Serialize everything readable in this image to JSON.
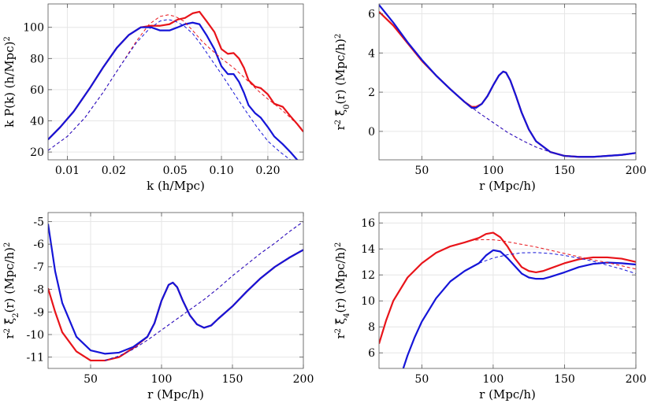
{
  "chart_data": [
    {
      "type": "line",
      "xlabel": "k (h/Mpc)",
      "ylabel": "k P(k) (h/Mpc)^2",
      "xscale": "log",
      "xlim": [
        0.0075,
        0.34
      ],
      "ylim": [
        15,
        115
      ],
      "xticks": [
        0.01,
        0.02,
        0.05,
        0.1,
        0.2
      ],
      "xtick_labels": [
        "0.01",
        "0.02",
        "0.05",
        "0.10",
        "0.20"
      ],
      "yticks": [
        20,
        40,
        60,
        80,
        100
      ],
      "ytick_labels": [
        "20",
        "40",
        "60",
        "80",
        "100"
      ],
      "grid": true,
      "series": [
        {
          "color": "#e8141a",
          "style": "solid",
          "x": [
            0.0075,
            0.009,
            0.011,
            0.014,
            0.017,
            0.021,
            0.025,
            0.03,
            0.035,
            0.04,
            0.046,
            0.052,
            0.058,
            0.065,
            0.072,
            0.08,
            0.09,
            0.1,
            0.11,
            0.12,
            0.13,
            0.14,
            0.15,
            0.165,
            0.18,
            0.2,
            0.22,
            0.25,
            0.28,
            0.31,
            0.34
          ],
          "y": [
            28,
            36,
            46,
            61,
            74,
            87,
            95,
            100,
            101,
            101,
            102,
            105,
            106,
            109,
            110,
            104,
            97,
            86,
            83,
            83.5,
            80,
            74,
            66,
            62,
            61,
            57,
            51,
            49,
            43,
            38,
            33
          ]
        },
        {
          "color": "#1515d8",
          "style": "solid",
          "x": [
            0.0075,
            0.009,
            0.011,
            0.014,
            0.017,
            0.021,
            0.025,
            0.03,
            0.035,
            0.04,
            0.046,
            0.052,
            0.058,
            0.065,
            0.072,
            0.08,
            0.09,
            0.1,
            0.11,
            0.12,
            0.13,
            0.14,
            0.15,
            0.165,
            0.18,
            0.2,
            0.22,
            0.25,
            0.28,
            0.31,
            0.33
          ],
          "y": [
            28,
            36,
            46,
            61,
            74,
            87,
            95,
            100,
            100,
            98,
            98,
            100,
            102,
            103,
            102,
            95,
            86,
            75,
            70,
            70,
            65,
            58,
            50,
            45,
            42,
            36,
            30,
            25,
            20,
            15,
            12
          ]
        },
        {
          "color": "#e8141a",
          "style": "dashed",
          "x": [
            0.0075,
            0.01,
            0.013,
            0.017,
            0.022,
            0.028,
            0.034,
            0.04,
            0.045,
            0.05,
            0.057,
            0.065,
            0.075,
            0.085,
            0.1,
            0.12,
            0.14,
            0.17,
            0.2,
            0.24,
            0.28,
            0.34
          ],
          "y": [
            21,
            30,
            42,
            58,
            75,
            91,
            102,
            107,
            108,
            107,
            104,
            98,
            91,
            86,
            80,
            74,
            68,
            60,
            54,
            48,
            42,
            34
          ]
        },
        {
          "color": "#1515d8",
          "style": "dashed",
          "x": [
            0.0075,
            0.01,
            0.013,
            0.017,
            0.022,
            0.028,
            0.034,
            0.04,
            0.045,
            0.05,
            0.057,
            0.065,
            0.075,
            0.085,
            0.1,
            0.12,
            0.14,
            0.17,
            0.2,
            0.24,
            0.28,
            0.34
          ],
          "y": [
            21,
            30,
            42,
            58,
            75,
            90,
            99,
            104,
            105,
            104,
            101,
            96,
            88,
            80,
            70,
            58,
            48,
            36,
            27,
            20,
            15,
            10
          ]
        }
      ]
    },
    {
      "type": "line",
      "xlabel": "r (Mpc/h)",
      "ylabel": "r^2 ξ̃_0(r) (Mpc/h)^2",
      "xlim": [
        20,
        200
      ],
      "ylim": [
        -1.45,
        6.5
      ],
      "xticks": [
        50,
        100,
        150,
        200
      ],
      "xtick_labels": [
        "50",
        "100",
        "150",
        "200"
      ],
      "yticks": [
        0,
        2,
        4,
        6
      ],
      "ytick_labels": [
        "0",
        "2",
        "4",
        "6"
      ],
      "grid": true,
      "series": [
        {
          "color": "#e8141a",
          "style": "solid",
          "x": [
            20,
            25,
            30,
            40,
            50,
            60,
            70,
            80,
            85,
            88,
            92,
            96,
            100,
            104,
            107,
            109,
            112,
            116,
            120,
            125,
            130,
            140,
            150,
            160,
            170,
            180,
            190,
            200
          ],
          "y": [
            6.1,
            5.75,
            5.4,
            4.5,
            3.6,
            2.85,
            2.15,
            1.5,
            1.25,
            1.25,
            1.4,
            1.8,
            2.35,
            2.85,
            3.05,
            3.0,
            2.6,
            1.8,
            0.95,
            0.1,
            -0.5,
            -1.05,
            -1.25,
            -1.3,
            -1.3,
            -1.25,
            -1.2,
            -1.1
          ]
        },
        {
          "color": "#1515d8",
          "style": "solid",
          "x": [
            20,
            25,
            30,
            40,
            50,
            60,
            70,
            80,
            85,
            88,
            92,
            96,
            100,
            104,
            107,
            109,
            112,
            116,
            120,
            125,
            130,
            140,
            150,
            160,
            170,
            180,
            190,
            200
          ],
          "y": [
            6.45,
            6.0,
            5.55,
            4.55,
            3.65,
            2.85,
            2.15,
            1.5,
            1.2,
            1.2,
            1.4,
            1.8,
            2.35,
            2.85,
            3.05,
            3.0,
            2.6,
            1.8,
            0.95,
            0.1,
            -0.5,
            -1.05,
            -1.25,
            -1.3,
            -1.3,
            -1.25,
            -1.2,
            -1.1
          ]
        },
        {
          "color": "#e8141a",
          "style": "dashed",
          "x": [
            80,
            90,
            100,
            110,
            120,
            130,
            140,
            150,
            160
          ],
          "y": [
            1.5,
            0.95,
            0.45,
            -0.05,
            -0.45,
            -0.8,
            -1.05,
            -1.25,
            -1.3
          ]
        },
        {
          "color": "#1515d8",
          "style": "dashed",
          "x": [
            80,
            90,
            100,
            110,
            120,
            130,
            140,
            150,
            160
          ],
          "y": [
            1.5,
            0.95,
            0.45,
            -0.05,
            -0.45,
            -0.8,
            -1.05,
            -1.25,
            -1.3
          ]
        }
      ]
    },
    {
      "type": "line",
      "xlabel": "r (Mpc/h)",
      "ylabel": "r^2 ξ̃_2(r) (Mpc/h)^2",
      "xlim": [
        20,
        200
      ],
      "ylim": [
        -11.5,
        -4.6
      ],
      "xticks": [
        50,
        100,
        150,
        200
      ],
      "xtick_labels": [
        "50",
        "100",
        "150",
        "200"
      ],
      "yticks": [
        -11,
        -10,
        -9,
        -8,
        -7,
        -6,
        -5
      ],
      "ytick_labels": [
        "-11",
        "-10",
        "-9",
        "-8",
        "-7",
        "-6",
        "-5"
      ],
      "grid": true,
      "series": [
        {
          "color": "#e8141a",
          "style": "solid",
          "x": [
            20,
            25,
            30,
            40,
            50,
            60,
            70,
            80,
            90,
            95,
            100,
            105,
            108,
            111,
            115,
            120,
            125,
            130,
            135,
            140,
            150,
            160,
            170,
            180,
            190,
            200
          ],
          "y": [
            -7.95,
            -9.0,
            -9.9,
            -10.75,
            -11.15,
            -11.15,
            -11.0,
            -10.6,
            -10.1,
            -9.5,
            -8.5,
            -7.8,
            -7.7,
            -7.9,
            -8.5,
            -9.15,
            -9.55,
            -9.7,
            -9.6,
            -9.3,
            -8.75,
            -8.1,
            -7.5,
            -7.0,
            -6.6,
            -6.25
          ]
        },
        {
          "color": "#1515d8",
          "style": "solid",
          "x": [
            20,
            25,
            30,
            40,
            50,
            60,
            70,
            80,
            90,
            95,
            100,
            105,
            108,
            111,
            115,
            120,
            125,
            130,
            135,
            140,
            150,
            160,
            170,
            180,
            190,
            200
          ],
          "y": [
            -5.1,
            -7.2,
            -8.6,
            -10.1,
            -10.7,
            -10.85,
            -10.8,
            -10.55,
            -10.1,
            -9.5,
            -8.5,
            -7.8,
            -7.7,
            -7.9,
            -8.5,
            -9.15,
            -9.55,
            -9.7,
            -9.6,
            -9.3,
            -8.75,
            -8.1,
            -7.5,
            -7.0,
            -6.6,
            -6.25
          ]
        },
        {
          "color": "#e8141a",
          "style": "dashed",
          "x": [
            60,
            70,
            80,
            90,
            100,
            110,
            120,
            130,
            140,
            150,
            160,
            170,
            180,
            190,
            200
          ],
          "y": [
            -11.15,
            -10.95,
            -10.65,
            -10.25,
            -9.8,
            -9.35,
            -8.9,
            -8.45,
            -7.95,
            -7.4,
            -6.9,
            -6.4,
            -5.95,
            -5.45,
            -5.0
          ]
        },
        {
          "color": "#1515d8",
          "style": "dashed",
          "x": [
            60,
            70,
            80,
            90,
            100,
            110,
            120,
            130,
            140,
            150,
            160,
            170,
            180,
            190,
            200
          ],
          "y": [
            -11.15,
            -10.95,
            -10.65,
            -10.25,
            -9.8,
            -9.35,
            -8.9,
            -8.45,
            -7.95,
            -7.4,
            -6.9,
            -6.4,
            -5.95,
            -5.45,
            -5.0
          ]
        }
      ]
    },
    {
      "type": "line",
      "xlabel": "r (Mpc/h)",
      "ylabel": "r^2 ξ̃_4(r) (Mpc/h)^2",
      "xlim": [
        20,
        200
      ],
      "ylim": [
        4.8,
        16.8
      ],
      "xticks": [
        50,
        100,
        150,
        200
      ],
      "xtick_labels": [
        "50",
        "100",
        "150",
        "200"
      ],
      "yticks": [
        6,
        8,
        10,
        12,
        14,
        16
      ],
      "ytick_labels": [
        "6",
        "8",
        "10",
        "12",
        "14",
        "16"
      ],
      "grid": true,
      "series": [
        {
          "color": "#e8141a",
          "style": "solid",
          "x": [
            20,
            25,
            30,
            40,
            50,
            60,
            70,
            80,
            90,
            95,
            100,
            105,
            110,
            115,
            120,
            125,
            130,
            135,
            140,
            150,
            160,
            170,
            180,
            190,
            200
          ],
          "y": [
            6.7,
            8.5,
            10.0,
            11.8,
            12.9,
            13.7,
            14.2,
            14.5,
            14.85,
            15.15,
            15.25,
            14.9,
            14.2,
            13.3,
            12.6,
            12.3,
            12.2,
            12.3,
            12.5,
            12.9,
            13.2,
            13.35,
            13.35,
            13.25,
            13.0
          ]
        },
        {
          "color": "#1515d8",
          "style": "solid",
          "x": [
            37,
            40,
            45,
            50,
            60,
            70,
            80,
            90,
            95,
            100,
            105,
            110,
            115,
            120,
            125,
            130,
            135,
            140,
            150,
            160,
            170,
            180,
            190,
            200
          ],
          "y": [
            4.8,
            5.8,
            7.2,
            8.4,
            10.2,
            11.5,
            12.3,
            12.9,
            13.5,
            13.9,
            13.8,
            13.3,
            12.7,
            12.1,
            11.8,
            11.7,
            11.7,
            11.85,
            12.2,
            12.6,
            12.85,
            12.95,
            12.9,
            12.8
          ]
        },
        {
          "color": "#e8141a",
          "style": "dashed",
          "x": [
            80,
            85,
            90,
            95,
            100,
            105,
            110,
            120,
            130,
            140,
            150,
            160,
            170,
            180,
            190,
            200
          ],
          "y": [
            14.5,
            14.65,
            14.7,
            14.72,
            14.7,
            14.65,
            14.55,
            14.35,
            14.15,
            13.9,
            13.65,
            13.4,
            13.15,
            12.95,
            12.7,
            12.45
          ]
        },
        {
          "color": "#1515d8",
          "style": "dashed",
          "x": [
            80,
            90,
            100,
            110,
            120,
            130,
            140,
            150,
            160,
            170,
            180,
            190,
            200
          ],
          "y": [
            12.3,
            12.9,
            13.3,
            13.55,
            13.7,
            13.72,
            13.65,
            13.5,
            13.3,
            13.05,
            12.75,
            12.45,
            12.1
          ]
        }
      ]
    }
  ]
}
